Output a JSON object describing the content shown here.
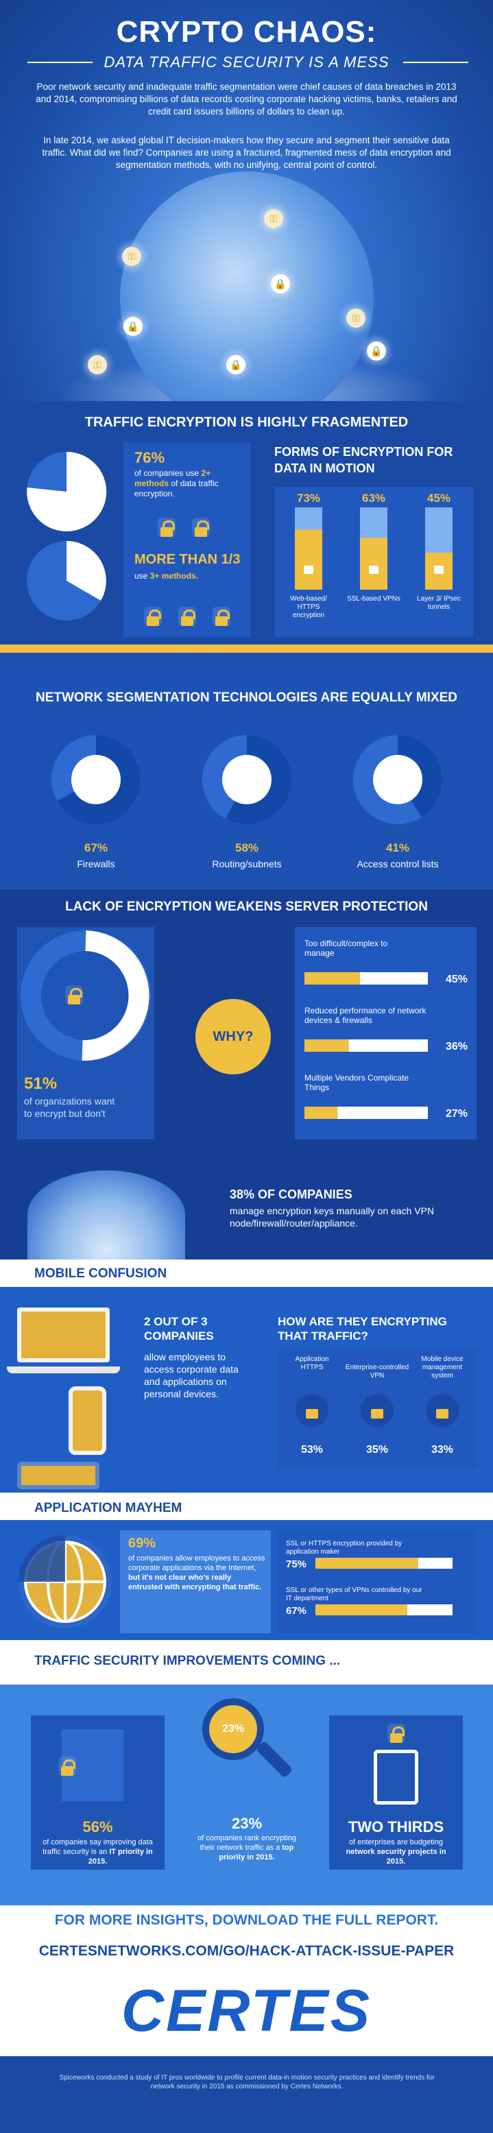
{
  "hero": {
    "title": "CRYPTO CHAOS:",
    "subtitle": "DATA TRAFFIC SECURITY IS A MESS",
    "para1": "Poor network security and inadequate traffic segmentation were chief causes of data breaches in 2013 and 2014, compromising billions of data records costing corporate hacking victims, banks, retailers and credit card issuers billions of dollars to clean up.",
    "para2": "In late 2014, we asked global IT decision-makers how they secure and segment their sensitive data traffic. What did we find? Companies are using a fractured, fragmented mess of data encryption and segmentation methods, with no unifying, central point of control."
  },
  "s1": {
    "header": "TRAFFIC ENCRYPTION IS HIGHLY FRAGMENTED",
    "stat1_pct": "76%",
    "stat1_text_a": "of companies use",
    "stat1_text_b": "2+ methods",
    "stat1_text_c": "of data traffic encryption.",
    "stat2_pct": "MORE THAN 1/3",
    "stat2_text_a": "use",
    "stat2_text_b": "3+ methods.",
    "forms_title": "FORMS OF ENCRYPTION FOR DATA IN MOTION"
  },
  "chart_data": [
    {
      "type": "bar",
      "title": "FORMS OF ENCRYPTION FOR DATA IN MOTION",
      "categories": [
        "Web-based/ HTTPS encryption",
        "SSL-based VPNs",
        "Layer 3/ IPsec tunnels"
      ],
      "values": [
        73,
        63,
        45
      ],
      "labels": [
        "73%",
        "63%",
        "45%"
      ],
      "ylim": [
        0,
        100
      ]
    },
    {
      "type": "pie",
      "categories": [
        "Firewalls",
        "Routing/subnets",
        "Access control lists"
      ],
      "values": [
        67,
        58,
        41
      ],
      "labels": [
        "67%",
        "58%",
        "41%"
      ]
    },
    {
      "type": "bar",
      "categories": [
        "Too difficult/complex to manage",
        "Reduced performance of network devices & firewalls",
        "Multiple Vendors Complicate Things"
      ],
      "values": [
        45,
        36,
        27
      ],
      "labels": [
        "45%",
        "36%",
        "27%"
      ],
      "ylim": [
        0,
        100
      ]
    },
    {
      "type": "bar",
      "categories": [
        "Application HTTPS",
        "Enterprise-controlled VPN",
        "Mobile device management system"
      ],
      "values": [
        53,
        35,
        33
      ],
      "labels": [
        "53%",
        "35%",
        "33%"
      ],
      "ylim": [
        0,
        100
      ]
    },
    {
      "type": "bar",
      "categories": [
        "SSL or HTTPS encryption provided by application maker",
        "SSL or other types of VPNs controlled by our IT department"
      ],
      "values": [
        75,
        67
      ],
      "labels": [
        "75%",
        "67%"
      ],
      "ylim": [
        0,
        100
      ]
    }
  ],
  "s2": {
    "header": "NETWORK SEGMENTATION TECHNOLOGIES ARE EQUALLY MIXED"
  },
  "s3": {
    "header": "LACK OF ENCRYPTION WEAKENS SERVER PROTECTION",
    "pct": "51%",
    "text": "of organizations want to encrypt but don't",
    "why": "WHY?"
  },
  "s4": {
    "pct_title": "38% OF COMPANIES",
    "text": "manage encryption keys manually on each VPN node/firewall/router/appliance."
  },
  "s5": {
    "header": "MOBILE CONFUSION",
    "stat_title": "2 OUT OF 3 COMPANIES",
    "stat_text": "allow employees to access corporate data and applications on personal devices.",
    "how_title": "HOW ARE THEY ENCRYPTING THAT TRAFFIC?"
  },
  "s6": {
    "header": "APPLICATION MAYHEM",
    "pct": "69%",
    "text_a": "of companies allow employees to access corporate applications via the Internet,",
    "text_b": "but it's not clear who's really entrusted with encrypting that traffic."
  },
  "s7": {
    "header": "TRAFFIC SECURITY IMPROVEMENTS COMING ...",
    "c1_pct": "56%",
    "c1_text_a": "of companies say improving data traffic security is an",
    "c1_text_b": "IT priority in 2015.",
    "c2_badge": "23%",
    "c2_pct": "23%",
    "c2_text_a": "of companies rank encrypting their network traffic as a",
    "c2_text_b": "top priority in 2015.",
    "c3_title": "TWO THIRDS",
    "c3_text_a": "of enterprises are budgeting",
    "c3_text_b": "network security projects in 2015."
  },
  "footer": {
    "cta1": "FOR MORE INSIGHTS, DOWNLOAD THE FULL REPORT.",
    "cta2": "CERTESNETWORKS.COM/GO/HACK-ATTACK-ISSUE-PAPER",
    "brand": "CERTES",
    "note": "Spiceworks conducted a study of IT pros worldwide to profile current data-in motion security practices and identify trends for network security in 2015 as commissioned by Certes Networks."
  },
  "colors": {
    "gold": "#f0c040",
    "blue_dark": "#163f93",
    "blue_mid": "#1f55b5",
    "blue_light": "#3c7fdc",
    "band_gold": "#f0c040"
  },
  "icons": [
    "lock-icon",
    "key-icon",
    "brick-wall-icon",
    "arrows-icon",
    "check-shield-icon",
    "laptop-icon",
    "phone-icon",
    "tablet-icon",
    "globe-icon",
    "calculator-icon",
    "magnifier-icon"
  ]
}
